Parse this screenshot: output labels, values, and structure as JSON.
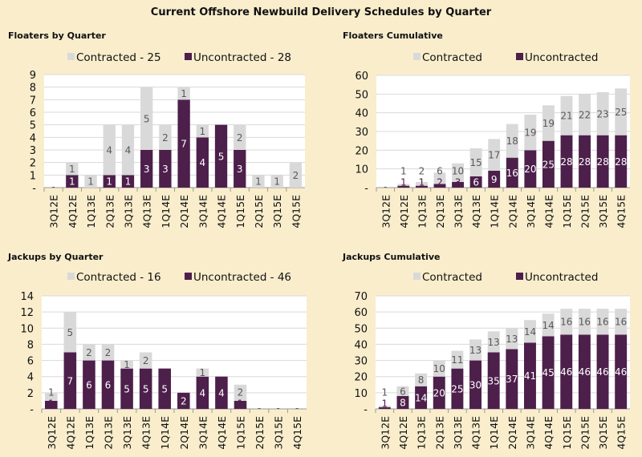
{
  "title": "Current Offshore Newbuild Delivery Schedules by Quarter",
  "colors": {
    "contracted": "#d9d9d9",
    "uncontracted": "#4d1f4b",
    "background": "#f9edcc",
    "plot": "#ffffff",
    "grid": "#d9d9d9"
  },
  "chart_data": [
    {
      "type": "bar",
      "stacked": true,
      "title": "Floaters by Quarter",
      "categories": [
        "3Q12E",
        "4Q12E",
        "1Q13E",
        "2Q13E",
        "3Q13E",
        "4Q13E",
        "1Q14E",
        "2Q14E",
        "3Q14E",
        "4Q14E",
        "1Q15E",
        "2Q15E",
        "3Q15E",
        "4Q15E"
      ],
      "series": [
        {
          "name": "Uncontracted - 28",
          "values": [
            0,
            1,
            0,
            1,
            1,
            3,
            3,
            7,
            4,
            5,
            3,
            0,
            0,
            0
          ]
        },
        {
          "name": "Contracted - 25",
          "values": [
            0,
            1,
            1,
            4,
            4,
            5,
            2,
            1,
            1,
            0,
            2,
            1,
            1,
            2
          ]
        }
      ],
      "legend_order": [
        "Contracted - 25",
        "Uncontracted - 28"
      ],
      "ylim": [
        0,
        9
      ],
      "ystep": 1,
      "zero_label": "-",
      "grid": true,
      "legend": "top"
    },
    {
      "type": "bar",
      "stacked": true,
      "title": "Floaters Cumulative",
      "categories": [
        "3Q12E",
        "4Q12E",
        "1Q13E",
        "2Q13E",
        "3Q13E",
        "4Q13E",
        "1Q14E",
        "2Q14E",
        "3Q14E",
        "4Q14E",
        "1Q15E",
        "2Q15E",
        "3Q15E",
        "4Q15E"
      ],
      "series": [
        {
          "name": "Uncontracted",
          "values": [
            0,
            1,
            1,
            2,
            3,
            6,
            9,
            16,
            20,
            25,
            28,
            28,
            28,
            28
          ]
        },
        {
          "name": "Contracted",
          "values": [
            0,
            1,
            2,
            6,
            10,
            15,
            17,
            18,
            19,
            19,
            21,
            22,
            23,
            25
          ]
        }
      ],
      "legend_order": [
        "Contracted",
        "Uncontracted"
      ],
      "ylim": [
        0,
        60
      ],
      "ystep": 10,
      "zero_label": "-",
      "grid": true,
      "legend": "top"
    },
    {
      "type": "bar",
      "stacked": true,
      "title": "Jackups by Quarter",
      "categories": [
        "3Q12E",
        "4Q12E",
        "1Q13E",
        "2Q13E",
        "3Q13E",
        "4Q13E",
        "1Q14E",
        "2Q14E",
        "3Q14E",
        "4Q14E",
        "1Q15E",
        "2Q15E",
        "3Q15E",
        "4Q15E"
      ],
      "series": [
        {
          "name": "Uncontracted - 46",
          "values": [
            1,
            7,
            6,
            6,
            5,
            5,
            5,
            2,
            4,
            4,
            1,
            0,
            0,
            0
          ]
        },
        {
          "name": "Contracted - 16",
          "values": [
            1,
            5,
            2,
            2,
            1,
            2,
            0,
            0,
            1,
            0,
            2,
            0,
            0,
            0
          ]
        }
      ],
      "legend_order": [
        "Contracted - 16",
        "Uncontracted - 46"
      ],
      "ylim": [
        0,
        14
      ],
      "ystep": 2,
      "zero_label": "-",
      "grid": true,
      "legend": "top"
    },
    {
      "type": "bar",
      "stacked": true,
      "title": "Jackups Cumulative",
      "categories": [
        "3Q12E",
        "4Q12E",
        "1Q13E",
        "2Q13E",
        "3Q13E",
        "4Q13E",
        "1Q14E",
        "2Q14E",
        "3Q14E",
        "4Q14E",
        "1Q15E",
        "2Q15E",
        "3Q15E",
        "4Q15E"
      ],
      "series": [
        {
          "name": "Uncontracted",
          "values": [
            1,
            8,
            14,
            20,
            25,
            30,
            35,
            37,
            41,
            45,
            46,
            46,
            46,
            46
          ]
        },
        {
          "name": "Contracted",
          "values": [
            1,
            6,
            8,
            10,
            11,
            13,
            13,
            13,
            14,
            14,
            16,
            16,
            16,
            16
          ]
        }
      ],
      "legend_order": [
        "Contracted",
        "Uncontracted"
      ],
      "ylim": [
        0,
        70
      ],
      "ystep": 10,
      "zero_label": "-",
      "grid": true,
      "legend": "top"
    }
  ]
}
